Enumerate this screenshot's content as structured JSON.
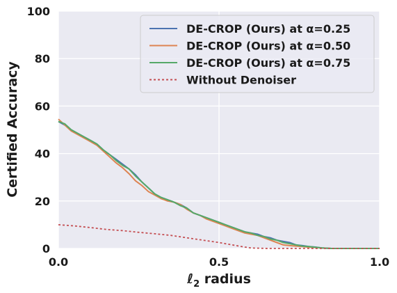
{
  "chart_data": {
    "type": "line",
    "xlabel_base": "ℓ",
    "xlabel_sub": "2",
    "xlabel_rest": " radius",
    "ylabel": "Certified Accuracy",
    "xlim": [
      0.0,
      1.0
    ],
    "ylim": [
      0,
      100
    ],
    "xticks": [
      "0.0",
      "0.5",
      "1.0"
    ],
    "yticks": [
      "0",
      "20",
      "40",
      "60",
      "80",
      "100"
    ],
    "grid": true,
    "legend_position": "top-right",
    "series": [
      {
        "legend_label": "DE-CROP (Ours) at α=0.25",
        "color": "#4c72b0",
        "style": "solid",
        "x": [
          0.0,
          0.02,
          0.04,
          0.06,
          0.08,
          0.1,
          0.12,
          0.14,
          0.16,
          0.18,
          0.2,
          0.22,
          0.24,
          0.26,
          0.28,
          0.3,
          0.32,
          0.34,
          0.36,
          0.38,
          0.4,
          0.42,
          0.44,
          0.46,
          0.48,
          0.5,
          0.52,
          0.54,
          0.56,
          0.58,
          0.6,
          0.62,
          0.64,
          0.66,
          0.68,
          0.7,
          0.72,
          0.74,
          0.76,
          0.78,
          0.8,
          0.82,
          0.85,
          0.9,
          0.95,
          1.0
        ],
        "y": [
          53.5,
          52,
          50,
          48.5,
          47,
          45.5,
          44,
          41.5,
          39.5,
          37.5,
          35.5,
          33.5,
          31,
          28,
          25.5,
          23,
          21.5,
          20.5,
          19.5,
          18.5,
          17,
          15,
          14,
          13,
          12,
          11,
          10,
          9,
          8,
          7,
          6.5,
          6,
          5,
          4.5,
          3.5,
          3,
          2.5,
          1.5,
          1.2,
          0.8,
          0.6,
          0.2,
          0,
          0,
          0,
          0
        ]
      },
      {
        "legend_label": "DE-CROP (Ours) at α=0.50",
        "color": "#dd8452",
        "style": "solid",
        "x": [
          0.0,
          0.02,
          0.04,
          0.06,
          0.08,
          0.1,
          0.12,
          0.14,
          0.16,
          0.18,
          0.2,
          0.22,
          0.24,
          0.26,
          0.28,
          0.3,
          0.32,
          0.34,
          0.36,
          0.38,
          0.4,
          0.42,
          0.44,
          0.46,
          0.48,
          0.5,
          0.52,
          0.54,
          0.56,
          0.58,
          0.6,
          0.62,
          0.64,
          0.66,
          0.68,
          0.7,
          0.72,
          0.74,
          0.76,
          0.78,
          0.8,
          0.82,
          0.85,
          0.9,
          0.95,
          1.0
        ],
        "y": [
          54.5,
          52,
          49.5,
          48,
          46.5,
          45,
          43.5,
          41,
          38.5,
          36,
          34,
          31.5,
          28.5,
          26.5,
          24,
          22.5,
          21,
          20,
          19.5,
          18.5,
          16.5,
          15,
          14,
          12.5,
          11.5,
          10.5,
          9.5,
          8.5,
          7.5,
          6.5,
          6,
          5.5,
          4.5,
          3.5,
          2.5,
          1.5,
          1.2,
          1,
          0.8,
          0.5,
          0.4,
          0.2,
          0,
          0,
          0,
          0
        ]
      },
      {
        "legend_label": "DE-CROP (Ours) at α=0.75",
        "color": "#55a868",
        "style": "solid",
        "x": [
          0.0,
          0.02,
          0.04,
          0.06,
          0.08,
          0.1,
          0.12,
          0.14,
          0.16,
          0.18,
          0.2,
          0.22,
          0.24,
          0.26,
          0.28,
          0.3,
          0.32,
          0.34,
          0.36,
          0.38,
          0.4,
          0.42,
          0.44,
          0.46,
          0.48,
          0.5,
          0.52,
          0.54,
          0.56,
          0.58,
          0.6,
          0.62,
          0.64,
          0.66,
          0.68,
          0.7,
          0.72,
          0.74,
          0.76,
          0.78,
          0.8,
          0.82,
          0.85,
          0.9,
          0.95,
          1.0
        ],
        "y": [
          53.5,
          52.5,
          50,
          48.5,
          47,
          45.5,
          44,
          41.5,
          39.5,
          37,
          35,
          33.5,
          30.5,
          28,
          25.5,
          23,
          21.5,
          20.5,
          19.5,
          18,
          17,
          15,
          14,
          13,
          12,
          11,
          10,
          9,
          8,
          7,
          6.5,
          5.5,
          5,
          4,
          3.5,
          2.5,
          2,
          1.5,
          1,
          0.8,
          0.5,
          0.2,
          0,
          0,
          0,
          0
        ]
      },
      {
        "legend_label": "Without Denoiser",
        "color": "#c44e52",
        "style": "dotted",
        "x": [
          0.0,
          0.05,
          0.1,
          0.15,
          0.2,
          0.25,
          0.3,
          0.35,
          0.4,
          0.45,
          0.5,
          0.55,
          0.58,
          0.6,
          0.65,
          0.7,
          0.75,
          0.8,
          0.9,
          1.0
        ],
        "y": [
          10,
          9.5,
          8.8,
          8,
          7.5,
          6.8,
          6.2,
          5.5,
          4.5,
          3.5,
          2.5,
          1.3,
          0.6,
          0.2,
          0,
          0,
          0,
          0,
          0,
          0
        ]
      }
    ]
  }
}
